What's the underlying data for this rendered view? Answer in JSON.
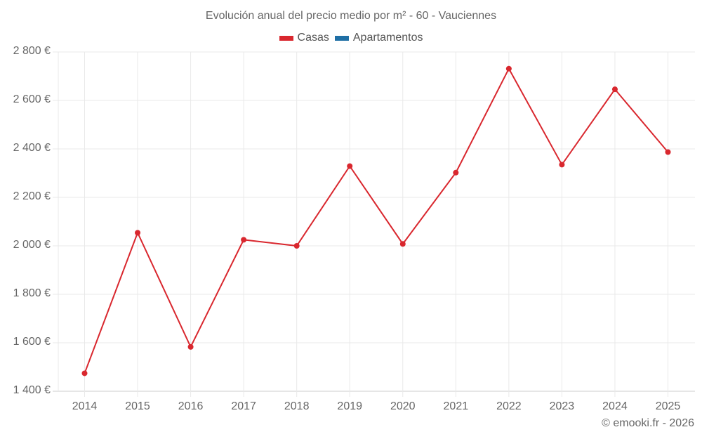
{
  "title": "Evolución anual del precio medio por m² - 60 - Vauciennes",
  "legend": [
    {
      "label": "Casas",
      "color": "#d9272e"
    },
    {
      "label": "Apartamentos",
      "color": "#1f6fa5"
    }
  ],
  "credit": "© emooki.fr - 2026",
  "y_ticks": [
    "2 800 €",
    "2 600 €",
    "2 400 €",
    "2 200 €",
    "2 000 €",
    "1 800 €",
    "1 600 €",
    "1 400 €"
  ],
  "x_ticks": [
    "2014",
    "2015",
    "2016",
    "2017",
    "2018",
    "2019",
    "2020",
    "2021",
    "2022",
    "2023",
    "2024",
    "2025"
  ],
  "chart_data": {
    "type": "line",
    "title": "Evolución anual del precio medio por m² - 60 - Vauciennes",
    "xlabel": "",
    "ylabel": "",
    "categories": [
      "2014",
      "2015",
      "2016",
      "2017",
      "2018",
      "2019",
      "2020",
      "2021",
      "2022",
      "2023",
      "2024",
      "2025"
    ],
    "series": [
      {
        "name": "Casas",
        "color": "#d9272e",
        "values": [
          1474,
          2054,
          1583,
          2025,
          2000,
          2329,
          2008,
          2302,
          2731,
          2335,
          2646,
          2387
        ]
      },
      {
        "name": "Apartamentos",
        "color": "#1f6fa5",
        "values": []
      }
    ],
    "ylim": [
      1400,
      2800
    ],
    "y_tick_step": 200,
    "grid": true,
    "legend_position": "top"
  }
}
